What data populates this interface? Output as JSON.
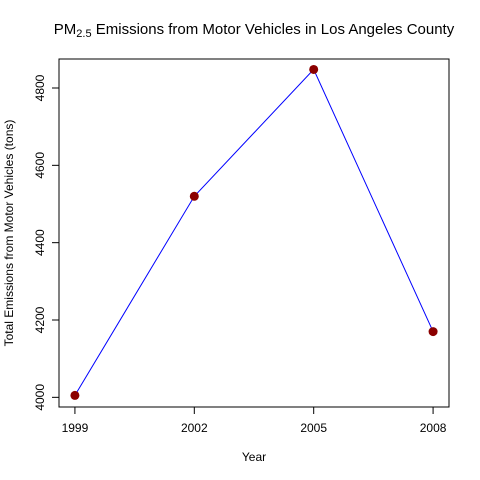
{
  "chart_data": {
    "type": "line",
    "title_pre": "PM",
    "title_sub": "2.5",
    "title_post": " Emissions from Motor Vehicles in Los Angeles County",
    "xlabel": "Year",
    "ylabel": "Total Emissions from Motor Vehicles (tons)",
    "x": [
      1999,
      2002,
      2005,
      2008
    ],
    "x_ticks": [
      "1999",
      "2002",
      "2005",
      "2008"
    ],
    "values": [
      4005,
      4520,
      4848,
      4170
    ],
    "y_ticks": [
      "4000",
      "4200",
      "4400",
      "4600",
      "4800"
    ],
    "xlim": [
      1998.6,
      2008.4
    ],
    "ylim": [
      3975,
      4875
    ],
    "grid": false,
    "line_color": "#0000ff",
    "point_color": "#8b0000"
  }
}
